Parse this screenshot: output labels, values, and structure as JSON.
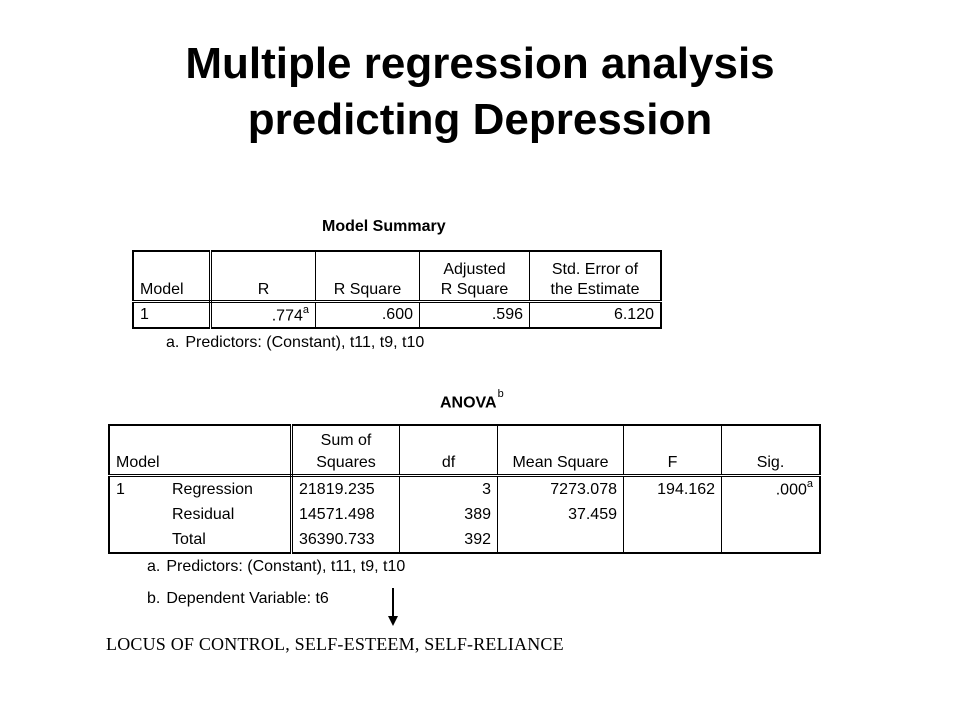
{
  "title": {
    "line1": "Multiple regression analysis",
    "line2": "predicting Depression"
  },
  "model_summary": {
    "caption": "Model Summary",
    "headers": {
      "model": "Model",
      "r": "R",
      "r_square": "R Square",
      "adj_r_square_line1": "Adjusted",
      "adj_r_square_line2": "R Square",
      "std_error_line1": "Std. Error of",
      "std_error_line2": "the Estimate"
    },
    "row": {
      "model": "1",
      "r": ".774",
      "r_marker": "a",
      "r_square": ".600",
      "adj_r_square": ".596",
      "std_error": "6.120"
    },
    "footnote_letter": "a.",
    "footnote_text": "Predictors: (Constant), t11, t9, t10"
  },
  "anova": {
    "caption": "ANOVA",
    "caption_marker": "b",
    "headers": {
      "model": "Model",
      "sum_sq_line1": "Sum of",
      "sum_sq_line2": "Squares",
      "df": "df",
      "mean_square": "Mean Square",
      "f": "F",
      "sig": "Sig."
    },
    "model_number": "1",
    "rows": [
      {
        "source": "Regression",
        "sum_sq": "21819.235",
        "df": "3",
        "mean_square": "7273.078",
        "f": "194.162",
        "sig": ".000",
        "sig_marker": "a"
      },
      {
        "source": "Residual",
        "sum_sq": "14571.498",
        "df": "389",
        "mean_square": "37.459",
        "f": "",
        "sig": "",
        "sig_marker": ""
      },
      {
        "source": "Total",
        "sum_sq": "36390.733",
        "df": "392",
        "mean_square": "",
        "f": "",
        "sig": "",
        "sig_marker": ""
      }
    ],
    "footnote_a_letter": "a.",
    "footnote_a_text": "Predictors: (Constant), t11, t9, t10",
    "footnote_b_letter": "b.",
    "footnote_b_text": "Dependent Variable: t6"
  },
  "annotation": "LOCUS OF CONTROL, SELF-ESTEEM, SELF-RELIANCE"
}
